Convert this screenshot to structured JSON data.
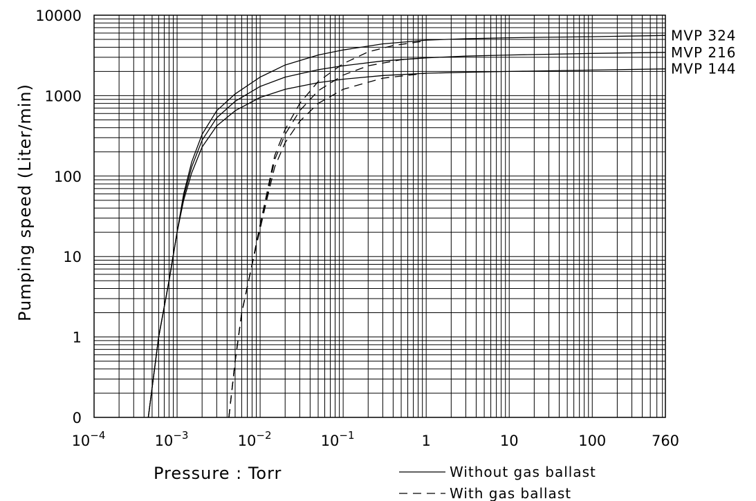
{
  "chart_data": {
    "type": "line",
    "xlabel": "Pressure : Torr",
    "ylabel": "Pumping speed (Liter/min)",
    "x_scale": "log",
    "y_scale": "log",
    "xlim": [
      0.0001,
      760
    ],
    "ylim": [
      0.1,
      10000
    ],
    "grid": true,
    "x_ticks": [
      {
        "value": 0.0001,
        "base": "10",
        "exp": "−4"
      },
      {
        "value": 0.001,
        "base": "10",
        "exp": "−3"
      },
      {
        "value": 0.01,
        "base": "10",
        "exp": "−2"
      },
      {
        "value": 0.1,
        "base": "10",
        "exp": "−1"
      },
      {
        "value": 1,
        "label": "1"
      },
      {
        "value": 10,
        "label": "10"
      },
      {
        "value": 100,
        "label": "100"
      },
      {
        "value": 760,
        "label": "760"
      }
    ],
    "y_ticks": [
      {
        "value": 10000,
        "label": "10000"
      },
      {
        "value": 1000,
        "label": "1000"
      },
      {
        "value": 100,
        "label": "100"
      },
      {
        "value": 10,
        "label": "10"
      },
      {
        "value": 1,
        "label": "1"
      },
      {
        "value": 0.1,
        "label": "0"
      }
    ],
    "legend": {
      "placement": "bottom-right",
      "entries": [
        {
          "style": "solid",
          "label": "Without gas ballast"
        },
        {
          "style": "dashed",
          "label": "With gas ballast"
        }
      ]
    },
    "series": [
      {
        "name": "MVP 324",
        "style": "solid",
        "x": [
          0.00045,
          0.0006,
          0.0008,
          0.001,
          0.0012,
          0.0015,
          0.002,
          0.003,
          0.005,
          0.01,
          0.02,
          0.05,
          0.1,
          0.3,
          1,
          3,
          10,
          100,
          760
        ],
        "y": [
          0.1,
          1,
          5,
          20,
          60,
          150,
          330,
          650,
          1050,
          1700,
          2400,
          3200,
          3700,
          4400,
          4900,
          5100,
          5250,
          5400,
          5600
        ]
      },
      {
        "name": "MVP 216",
        "style": "solid",
        "x": [
          0.00045,
          0.0006,
          0.0008,
          0.001,
          0.0012,
          0.0015,
          0.002,
          0.003,
          0.005,
          0.01,
          0.02,
          0.05,
          0.1,
          0.3,
          1,
          3,
          10,
          100,
          760
        ],
        "y": [
          0.1,
          1,
          5,
          20,
          55,
          130,
          280,
          530,
          850,
          1300,
          1700,
          2100,
          2350,
          2700,
          2950,
          3100,
          3200,
          3350,
          3450
        ]
      },
      {
        "name": "MVP 144",
        "style": "solid",
        "x": [
          0.00045,
          0.0006,
          0.0008,
          0.001,
          0.0012,
          0.0015,
          0.002,
          0.003,
          0.005,
          0.01,
          0.02,
          0.05,
          0.1,
          0.3,
          1,
          3,
          10,
          100,
          760
        ],
        "y": [
          0.1,
          1,
          5,
          20,
          50,
          110,
          230,
          420,
          650,
          950,
          1200,
          1450,
          1600,
          1780,
          1900,
          1950,
          2000,
          2080,
          2150
        ]
      },
      {
        "name": "MVP 324",
        "style": "dashed",
        "x": [
          0.0042,
          0.005,
          0.006,
          0.008,
          0.01,
          0.012,
          0.015,
          0.02,
          0.03,
          0.05,
          0.1,
          0.2,
          0.4,
          1
        ],
        "y": [
          0.1,
          0.5,
          2,
          8,
          25,
          60,
          180,
          380,
          800,
          1500,
          2500,
          3500,
          4200,
          4800
        ]
      },
      {
        "name": "MVP 216",
        "style": "dashed",
        "x": [
          0.0042,
          0.005,
          0.006,
          0.008,
          0.01,
          0.012,
          0.015,
          0.02,
          0.03,
          0.05,
          0.1,
          0.2,
          0.5,
          1
        ],
        "y": [
          0.1,
          0.5,
          2,
          8,
          25,
          55,
          160,
          330,
          650,
          1150,
          1800,
          2350,
          2800,
          2950
        ]
      },
      {
        "name": "MVP 144",
        "style": "dashed",
        "x": [
          0.0042,
          0.005,
          0.006,
          0.008,
          0.01,
          0.012,
          0.015,
          0.02,
          0.03,
          0.05,
          0.1,
          0.3,
          1
        ],
        "y": [
          0.1,
          0.5,
          2,
          8,
          22,
          50,
          130,
          260,
          480,
          800,
          1200,
          1650,
          1900
        ]
      }
    ]
  }
}
